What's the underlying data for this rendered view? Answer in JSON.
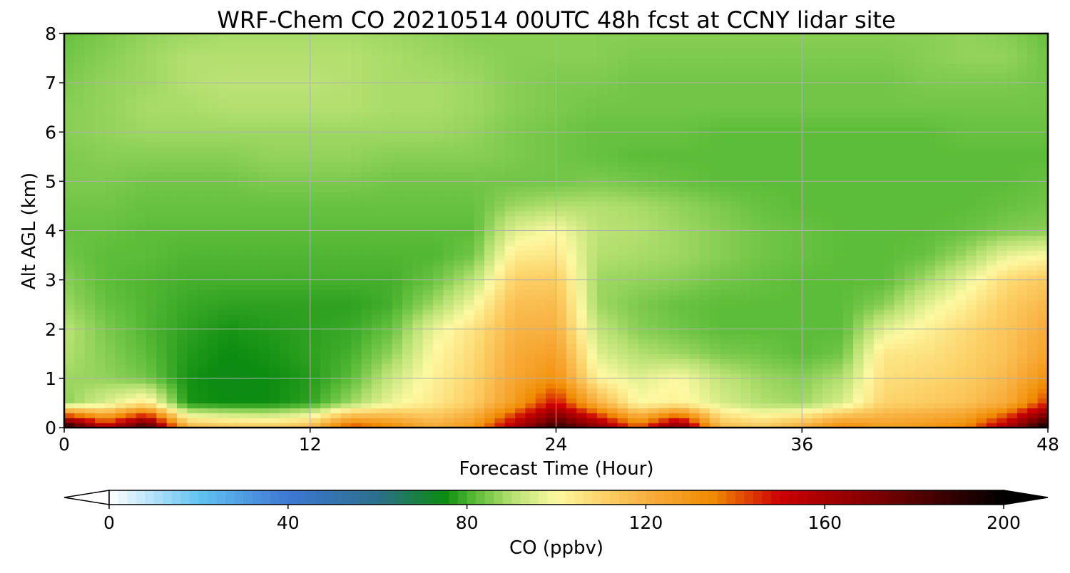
{
  "chart_data": {
    "type": "heatmap",
    "title": "WRF-Chem CO  20210514 00UTC 48h fcst at CCNY lidar site",
    "xlabel": "Forecast Time (Hour)",
    "ylabel": "Alt AGL (km)",
    "xlim": [
      0,
      48
    ],
    "ylim": [
      0,
      8
    ],
    "x_ticks": [
      0,
      12,
      24,
      36,
      48
    ],
    "y_ticks": [
      0,
      1,
      2,
      3,
      4,
      5,
      6,
      7,
      8
    ],
    "grid": true,
    "x": [
      0,
      2,
      4,
      6,
      8,
      10,
      12,
      14,
      16,
      18,
      20,
      22,
      24,
      26,
      28,
      30,
      32,
      34,
      36,
      38,
      40,
      42,
      44,
      46,
      48
    ],
    "y": [
      0,
      0.5,
      1,
      1.5,
      2,
      2.5,
      3,
      3.5,
      4,
      4.5,
      5,
      5.5,
      6,
      6.5,
      7,
      7.5,
      8
    ],
    "values": [
      [
        200,
        155,
        190,
        120,
        115,
        113,
        118,
        145,
        135,
        122,
        130,
        160,
        190,
        170,
        140,
        175,
        118,
        113,
        122,
        135,
        128,
        130,
        135,
        160,
        200
      ],
      [
        86,
        95,
        105,
        76,
        75,
        75,
        78,
        88,
        98,
        104,
        112,
        128,
        150,
        120,
        100,
        102,
        95,
        90,
        88,
        95,
        110,
        112,
        115,
        122,
        145
      ],
      [
        88,
        87,
        84,
        76,
        74,
        75,
        77,
        82,
        93,
        102,
        110,
        124,
        132,
        102,
        96,
        100,
        92,
        88,
        86,
        90,
        107,
        109,
        112,
        118,
        132
      ],
      [
        90,
        86,
        82,
        77,
        75,
        76,
        78,
        80,
        87,
        100,
        108,
        122,
        126,
        96,
        90,
        88,
        85,
        84,
        82,
        84,
        105,
        106,
        110,
        115,
        125
      ],
      [
        91,
        85,
        81,
        78,
        76,
        77,
        78,
        79,
        83,
        97,
        106,
        119,
        120,
        92,
        86,
        84,
        82,
        82,
        82,
        82,
        96,
        102,
        108,
        114,
        122
      ],
      [
        88,
        83,
        81,
        79,
        78,
        78,
        78,
        78,
        80,
        88,
        99,
        116,
        117,
        88,
        85,
        83,
        82,
        82,
        82,
        82,
        86,
        96,
        103,
        112,
        118
      ],
      [
        86,
        82,
        81,
        80,
        80,
        80,
        80,
        80,
        80,
        83,
        91,
        111,
        112,
        88,
        87,
        86,
        84,
        83,
        82,
        82,
        82,
        88,
        97,
        108,
        113
      ],
      [
        84,
        82,
        82,
        81,
        81,
        81,
        81,
        81,
        81,
        81,
        84,
        104,
        105,
        90,
        89,
        88,
        86,
        84,
        83,
        82,
        82,
        83,
        88,
        97,
        100
      ],
      [
        83,
        83,
        82,
        82,
        82,
        82,
        82,
        82,
        82,
        82,
        82,
        96,
        100,
        91,
        90,
        88,
        86,
        84,
        83,
        82,
        82,
        82,
        83,
        85,
        86
      ],
      [
        84,
        84,
        83,
        83,
        83,
        83,
        83,
        83,
        83,
        83,
        83,
        88,
        90,
        90,
        89,
        87,
        85,
        83,
        82,
        82,
        82,
        82,
        82,
        83,
        84
      ],
      [
        85,
        85,
        84,
        84,
        84,
        85,
        85,
        85,
        84,
        84,
        84,
        84,
        84,
        85,
        84,
        83,
        82,
        82,
        82,
        82,
        82,
        82,
        82,
        82,
        83
      ],
      [
        85,
        86,
        86,
        86,
        86,
        87,
        87,
        87,
        86,
        86,
        86,
        85,
        84,
        83,
        82,
        82,
        82,
        82,
        82,
        82,
        82,
        82,
        82,
        82,
        82
      ],
      [
        86,
        87,
        88,
        88,
        88,
        88,
        88,
        88,
        88,
        88,
        87,
        85,
        84,
        83,
        83,
        83,
        82,
        82,
        82,
        82,
        82,
        82,
        83,
        83,
        83
      ],
      [
        86,
        87,
        89,
        89,
        90,
        90,
        90,
        90,
        89,
        89,
        88,
        86,
        85,
        84,
        84,
        84,
        84,
        84,
        84,
        84,
        84,
        84,
        84,
        84,
        84
      ],
      [
        85,
        87,
        88,
        90,
        91,
        91,
        91,
        90,
        89,
        89,
        88,
        86,
        85,
        85,
        84,
        84,
        84,
        84,
        84,
        84,
        84,
        85,
        85,
        85,
        84
      ],
      [
        84,
        86,
        88,
        90,
        90,
        90,
        90,
        90,
        89,
        88,
        87,
        86,
        86,
        86,
        85,
        85,
        85,
        85,
        85,
        85,
        85,
        86,
        87,
        87,
        84
      ],
      [
        83,
        85,
        87,
        88,
        89,
        89,
        89,
        89,
        88,
        87,
        86,
        86,
        86,
        86,
        86,
        86,
        86,
        86,
        86,
        86,
        86,
        86,
        87,
        86,
        83
      ]
    ],
    "colorbar": {
      "label": "CO  (ppbv)",
      "min": 0,
      "max": 200,
      "ticks": [
        0,
        40,
        80,
        120,
        160,
        200
      ],
      "extend": "both",
      "orientation": "horizontal",
      "placement": "bottom",
      "stops": [
        {
          "value": 0,
          "color": "#ffffff"
        },
        {
          "value": 20,
          "color": "#63c3f2"
        },
        {
          "value": 40,
          "color": "#3d78d2"
        },
        {
          "value": 60,
          "color": "#2c6e8c"
        },
        {
          "value": 75,
          "color": "#0c8c10"
        },
        {
          "value": 82,
          "color": "#5cbd38"
        },
        {
          "value": 90,
          "color": "#b4e070"
        },
        {
          "value": 100,
          "color": "#fdf9a2"
        },
        {
          "value": 110,
          "color": "#fcd36a"
        },
        {
          "value": 120,
          "color": "#f8b040"
        },
        {
          "value": 135,
          "color": "#f08a00"
        },
        {
          "value": 150,
          "color": "#cc0000"
        },
        {
          "value": 170,
          "color": "#820000"
        },
        {
          "value": 200,
          "color": "#000000"
        }
      ]
    }
  }
}
